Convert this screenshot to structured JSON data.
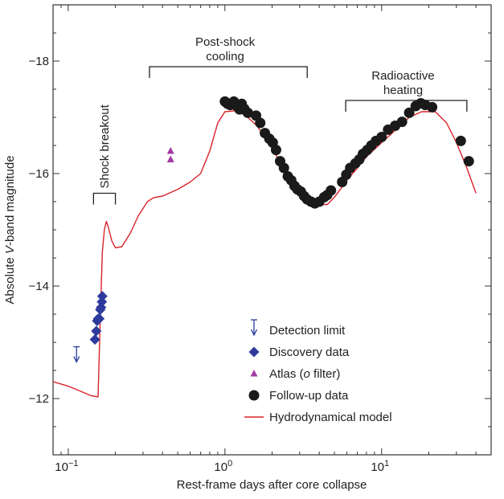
{
  "chart_data": {
    "type": "scatter",
    "x_scale": "log",
    "y_reversed": true,
    "xlim": [
      0.08,
      50
    ],
    "ylim": [
      -11.0,
      -19.0
    ],
    "xlabel": "Rest-frame days after core collapse",
    "ylabel_prefix": "Absolute ",
    "ylabel_italic": "V",
    "ylabel_suffix": "-band magnitude",
    "x_ticks": [
      {
        "value": 0.1,
        "base": "10",
        "exp": "−1"
      },
      {
        "value": 1,
        "base": "10",
        "exp": "0"
      },
      {
        "value": 10,
        "base": "10",
        "exp": "1"
      }
    ],
    "y_ticks": [
      {
        "value": -12,
        "label": "−12"
      },
      {
        "value": -14,
        "label": "−14"
      },
      {
        "value": -16,
        "label": "−16"
      },
      {
        "value": -18,
        "label": "−18"
      }
    ],
    "phases": [
      {
        "id": "shock-breakout",
        "lines": [
          "Shock breakout"
        ],
        "x0": 0.145,
        "x1": 0.2,
        "y": -15.65,
        "vertical": true
      },
      {
        "id": "post-shock-cooling",
        "lines": [
          "Post-shock",
          "cooling"
        ],
        "x0": 0.33,
        "x1": 3.35,
        "y": -17.9
      },
      {
        "id": "radioactive-heating",
        "lines": [
          "Radioactive",
          "heating"
        ],
        "x0": 5.9,
        "x1": 35,
        "y": -17.3
      }
    ],
    "series": [
      {
        "name": "Detection limit",
        "marker": "arrow",
        "color": "#2b3d9e",
        "points": [
          [
            0.113,
            -12.75
          ]
        ]
      },
      {
        "name": "Discovery data",
        "marker": "diamond",
        "color": "#2e3a9c",
        "points": [
          [
            0.148,
            -13.05
          ],
          [
            0.151,
            -13.2
          ],
          [
            0.153,
            -13.38
          ],
          [
            0.155,
            -13.42
          ],
          [
            0.158,
            -13.42
          ],
          [
            0.16,
            -13.58
          ],
          [
            0.162,
            -13.62
          ],
          [
            0.164,
            -13.72
          ],
          [
            0.165,
            -13.82
          ]
        ]
      },
      {
        "name": "Atlas (o filter)",
        "name_prefix": "Atlas (",
        "name_italic": "o",
        "name_suffix": " filter)",
        "marker": "triangle",
        "color": "#a23aa3",
        "points": [
          [
            0.45,
            -16.4
          ],
          [
            0.45,
            -16.25
          ]
        ]
      },
      {
        "name": "Follow-up data",
        "marker": "circle",
        "color": "#1a1a1a",
        "points": [
          [
            1.0,
            -17.28
          ],
          [
            1.04,
            -17.24
          ],
          [
            1.08,
            -17.22
          ],
          [
            1.14,
            -17.28
          ],
          [
            1.19,
            -17.2
          ],
          [
            1.24,
            -17.14
          ],
          [
            1.28,
            -17.24
          ],
          [
            1.33,
            -17.15
          ],
          [
            1.4,
            -17.08
          ],
          [
            1.58,
            -17.03
          ],
          [
            1.68,
            -16.9
          ],
          [
            1.8,
            -16.72
          ],
          [
            1.92,
            -16.62
          ],
          [
            2.02,
            -16.55
          ],
          [
            2.12,
            -16.42
          ],
          [
            2.25,
            -16.22
          ],
          [
            2.38,
            -16.1
          ],
          [
            2.52,
            -15.95
          ],
          [
            2.65,
            -15.88
          ],
          [
            2.78,
            -15.78
          ],
          [
            2.9,
            -15.72
          ],
          [
            3.05,
            -15.68
          ],
          [
            3.2,
            -15.6
          ],
          [
            3.35,
            -15.54
          ],
          [
            3.55,
            -15.5
          ],
          [
            3.75,
            -15.47
          ],
          [
            4.0,
            -15.5
          ],
          [
            4.3,
            -15.58
          ],
          [
            4.5,
            -15.62
          ],
          [
            4.75,
            -15.7
          ],
          [
            5.6,
            -15.85
          ],
          [
            5.95,
            -15.98
          ],
          [
            6.3,
            -16.1
          ],
          [
            6.8,
            -16.18
          ],
          [
            7.2,
            -16.25
          ],
          [
            7.6,
            -16.35
          ],
          [
            8.1,
            -16.42
          ],
          [
            8.6,
            -16.5
          ],
          [
            9.2,
            -16.58
          ],
          [
            10.0,
            -16.65
          ],
          [
            11.0,
            -16.78
          ],
          [
            12.2,
            -16.85
          ],
          [
            13.5,
            -16.92
          ],
          [
            15.0,
            -17.08
          ],
          [
            16.5,
            -17.2
          ],
          [
            17.8,
            -17.25
          ],
          [
            19.0,
            -17.22
          ],
          [
            21.0,
            -17.18
          ],
          [
            32.0,
            -16.58
          ],
          [
            36.0,
            -16.22
          ]
        ]
      },
      {
        "name": "Hydrodynamical model",
        "marker": "line",
        "color": "#d8232a",
        "points": [
          [
            0.08,
            -12.3
          ],
          [
            0.1,
            -12.22
          ],
          [
            0.12,
            -12.13
          ],
          [
            0.14,
            -12.05
          ],
          [
            0.155,
            -12.03
          ],
          [
            0.16,
            -13.4
          ],
          [
            0.165,
            -14.6
          ],
          [
            0.17,
            -15.0
          ],
          [
            0.175,
            -15.15
          ],
          [
            0.18,
            -15.05
          ],
          [
            0.19,
            -14.8
          ],
          [
            0.2,
            -14.68
          ],
          [
            0.22,
            -14.7
          ],
          [
            0.25,
            -14.95
          ],
          [
            0.28,
            -15.25
          ],
          [
            0.32,
            -15.5
          ],
          [
            0.35,
            -15.57
          ],
          [
            0.4,
            -15.6
          ],
          [
            0.5,
            -15.72
          ],
          [
            0.6,
            -15.85
          ],
          [
            0.7,
            -16.0
          ],
          [
            0.8,
            -16.4
          ],
          [
            0.9,
            -16.9
          ],
          [
            1.0,
            -17.1
          ],
          [
            1.2,
            -17.12
          ],
          [
            1.4,
            -17.0
          ],
          [
            1.6,
            -16.85
          ],
          [
            1.9,
            -16.55
          ],
          [
            2.2,
            -16.25
          ],
          [
            2.6,
            -15.95
          ],
          [
            3.0,
            -15.72
          ],
          [
            3.5,
            -15.55
          ],
          [
            4.0,
            -15.45
          ],
          [
            4.5,
            -15.45
          ],
          [
            5.0,
            -15.58
          ],
          [
            6.0,
            -15.88
          ],
          [
            7.0,
            -16.1
          ],
          [
            8.0,
            -16.3
          ],
          [
            10.0,
            -16.55
          ],
          [
            12.0,
            -16.75
          ],
          [
            15.0,
            -17.0
          ],
          [
            18.0,
            -17.1
          ],
          [
            22.0,
            -17.1
          ],
          [
            26.0,
            -16.9
          ],
          [
            30.0,
            -16.55
          ],
          [
            35.0,
            -16.1
          ],
          [
            40.0,
            -15.65
          ]
        ]
      }
    ]
  }
}
